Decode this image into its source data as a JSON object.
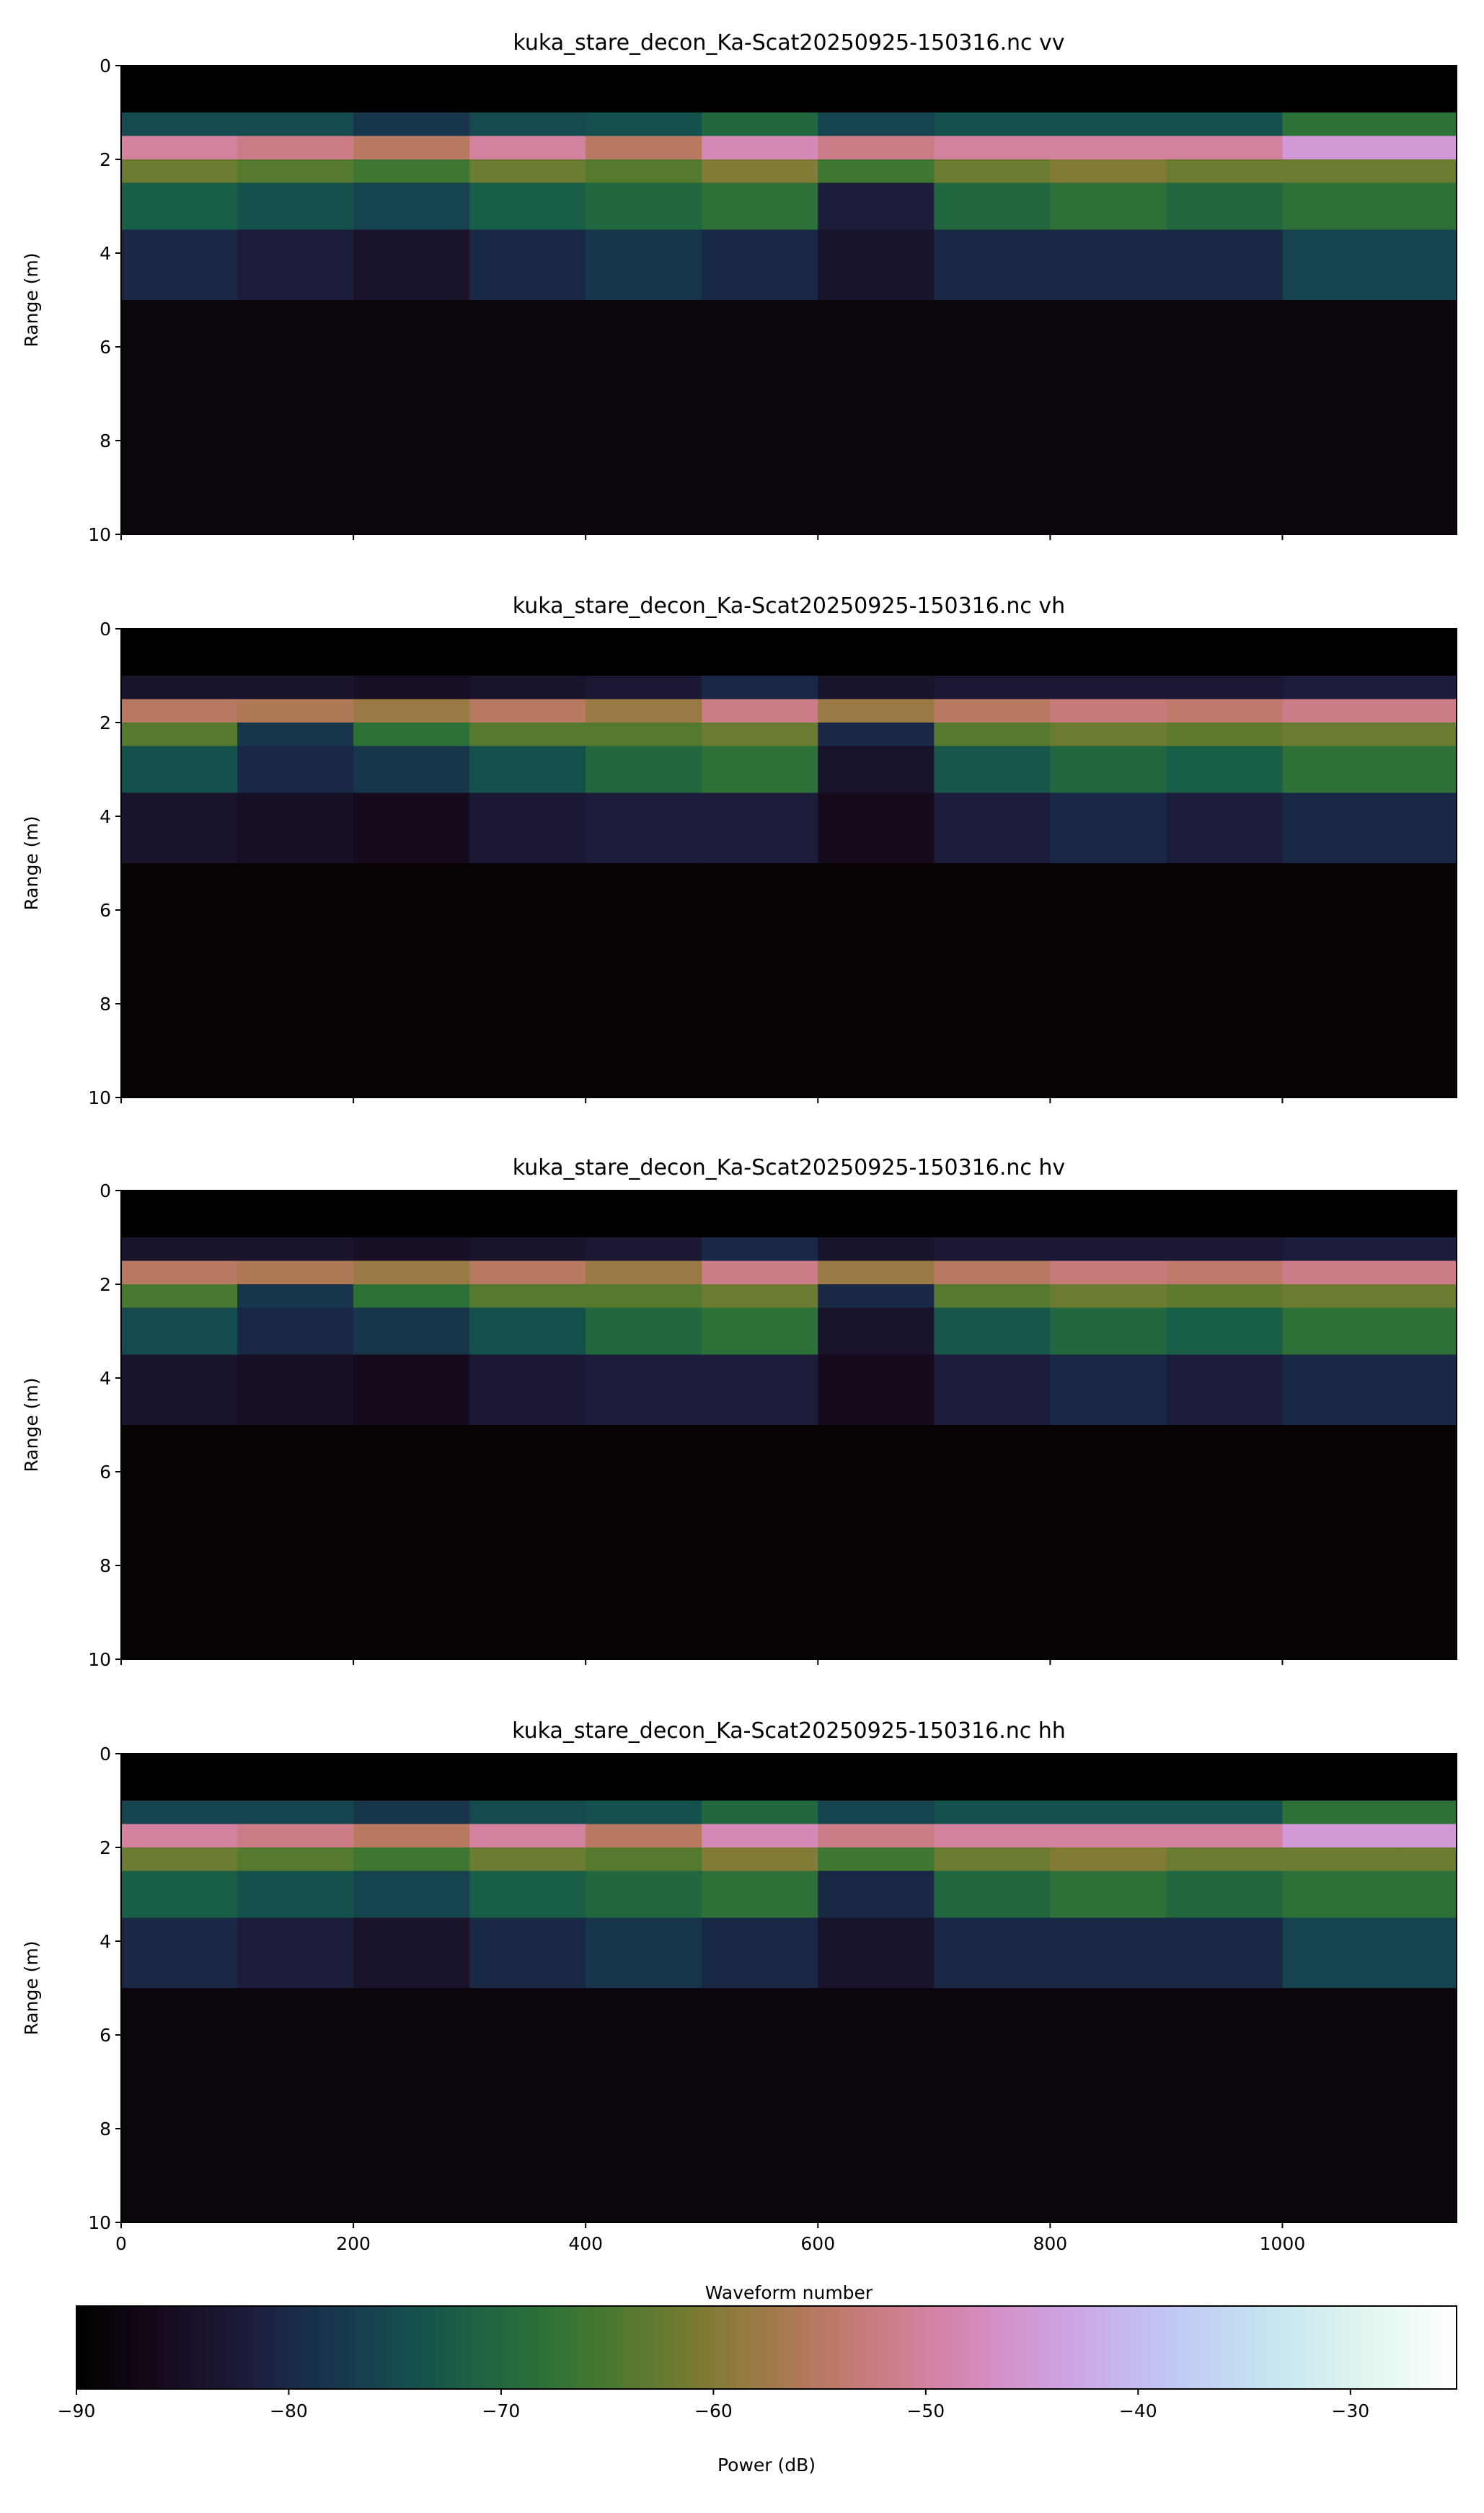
{
  "chart_data": [
    {
      "type": "heatmap",
      "title": "kuka_stare_decon_Ka-Scat20250925-150316.nc vv",
      "ylabel": "Range (m)",
      "colormap": "cubehelix",
      "xbins": [
        0,
        100,
        200,
        300,
        400,
        500,
        600,
        700,
        800,
        900,
        1000,
        1100,
        1150
      ],
      "ybins": [
        0,
        1,
        1.5,
        2,
        2.5,
        3.5,
        5,
        10
      ],
      "values": [
        [
          -90,
          -90,
          -90,
          -90,
          -90,
          -90,
          -90,
          -90,
          -90,
          -90,
          -90,
          -90
        ],
        [
          -75,
          -75,
          -78,
          -75,
          -74,
          -70,
          -76,
          -74,
          -74,
          -74,
          -68,
          -68
        ],
        [
          -50,
          -52,
          -55,
          -50,
          -55,
          -48,
          -52,
          -50,
          -50,
          -50,
          -45,
          -45
        ],
        [
          -62,
          -64,
          -66,
          -62,
          -64,
          -60,
          -66,
          -62,
          -60,
          -62,
          -62,
          -62
        ],
        [
          -72,
          -74,
          -76,
          -72,
          -70,
          -68,
          -82,
          -70,
          -68,
          -70,
          -68,
          -68
        ],
        [
          -80,
          -82,
          -84,
          -80,
          -78,
          -80,
          -84,
          -80,
          -80,
          -80,
          -76,
          -76
        ],
        [
          -88,
          -88,
          -88,
          -88,
          -88,
          -88,
          -88,
          -88,
          -88,
          -88,
          -88,
          -88
        ]
      ],
      "xlim": [
        0,
        1150
      ],
      "ylim": [
        10,
        0
      ],
      "xticks": [
        0,
        200,
        400,
        600,
        800,
        1000
      ],
      "yticks": [
        0,
        2,
        4,
        6,
        8,
        10
      ]
    },
    {
      "type": "heatmap",
      "title": "kuka_stare_decon_Ka-Scat20250925-150316.nc vh",
      "ylabel": "Range (m)",
      "colormap": "cubehelix",
      "xbins": [
        0,
        100,
        200,
        300,
        400,
        500,
        600,
        700,
        800,
        900,
        1000,
        1100,
        1150
      ],
      "ybins": [
        0,
        1,
        1.5,
        2,
        2.5,
        3.5,
        5,
        10
      ],
      "values": [
        [
          -90,
          -90,
          -90,
          -90,
          -90,
          -90,
          -90,
          -90,
          -90,
          -90,
          -90,
          -90
        ],
        [
          -84,
          -84,
          -85,
          -84,
          -83,
          -80,
          -84,
          -83,
          -83,
          -83,
          -82,
          -82
        ],
        [
          -55,
          -56,
          -58,
          -55,
          -58,
          -52,
          -58,
          -55,
          -53,
          -54,
          -52,
          -52
        ],
        [
          -64,
          -78,
          -68,
          -64,
          -64,
          -62,
          -80,
          -64,
          -62,
          -63,
          -62,
          -62
        ],
        [
          -74,
          -80,
          -78,
          -74,
          -70,
          -68,
          -84,
          -73,
          -70,
          -72,
          -68,
          -68
        ],
        [
          -84,
          -85,
          -86,
          -83,
          -82,
          -82,
          -86,
          -82,
          -80,
          -82,
          -80,
          -80
        ],
        [
          -89,
          -89,
          -89,
          -89,
          -89,
          -89,
          -89,
          -89,
          -89,
          -89,
          -89,
          -89
        ]
      ],
      "xlim": [
        0,
        1150
      ],
      "ylim": [
        10,
        0
      ],
      "xticks": [
        0,
        200,
        400,
        600,
        800,
        1000
      ],
      "yticks": [
        0,
        2,
        4,
        6,
        8,
        10
      ]
    },
    {
      "type": "heatmap",
      "title": "kuka_stare_decon_Ka-Scat20250925-150316.nc hv",
      "ylabel": "Range (m)",
      "colormap": "cubehelix",
      "xbins": [
        0,
        100,
        200,
        300,
        400,
        500,
        600,
        700,
        800,
        900,
        1000,
        1100,
        1150
      ],
      "ybins": [
        0,
        1,
        1.5,
        2,
        2.5,
        3.5,
        5,
        10
      ],
      "values": [
        [
          -90,
          -90,
          -90,
          -90,
          -90,
          -90,
          -90,
          -90,
          -90,
          -90,
          -90,
          -90
        ],
        [
          -84,
          -84,
          -85,
          -84,
          -83,
          -80,
          -84,
          -83,
          -83,
          -83,
          -82,
          -82
        ],
        [
          -55,
          -56,
          -58,
          -55,
          -58,
          -52,
          -58,
          -55,
          -53,
          -54,
          -52,
          -52
        ],
        [
          -65,
          -78,
          -68,
          -64,
          -64,
          -62,
          -80,
          -64,
          -62,
          -63,
          -62,
          -62
        ],
        [
          -75,
          -80,
          -78,
          -74,
          -70,
          -68,
          -84,
          -73,
          -70,
          -72,
          -68,
          -68
        ],
        [
          -84,
          -85,
          -86,
          -83,
          -82,
          -82,
          -86,
          -82,
          -80,
          -82,
          -80,
          -80
        ],
        [
          -89,
          -89,
          -89,
          -89,
          -89,
          -89,
          -89,
          -89,
          -89,
          -89,
          -89,
          -89
        ]
      ],
      "xlim": [
        0,
        1150
      ],
      "ylim": [
        10,
        0
      ],
      "xticks": [
        0,
        200,
        400,
        600,
        800,
        1000
      ],
      "yticks": [
        0,
        2,
        4,
        6,
        8,
        10
      ]
    },
    {
      "type": "heatmap",
      "title": "kuka_stare_decon_Ka-Scat20250925-150316.nc hh",
      "ylabel": "Range (m)",
      "xlabel": "Waveform number",
      "colormap": "cubehelix",
      "xbins": [
        0,
        100,
        200,
        300,
        400,
        500,
        600,
        700,
        800,
        900,
        1000,
        1100,
        1150
      ],
      "ybins": [
        0,
        1,
        1.5,
        2,
        2.5,
        3.5,
        5,
        10
      ],
      "values": [
        [
          -90,
          -90,
          -90,
          -90,
          -90,
          -90,
          -90,
          -90,
          -90,
          -90,
          -90,
          -90
        ],
        [
          -76,
          -76,
          -78,
          -75,
          -74,
          -70,
          -76,
          -74,
          -74,
          -74,
          -68,
          -68
        ],
        [
          -50,
          -52,
          -55,
          -50,
          -55,
          -48,
          -52,
          -50,
          -50,
          -50,
          -45,
          -45
        ],
        [
          -62,
          -64,
          -66,
          -62,
          -64,
          -60,
          -66,
          -62,
          -60,
          -62,
          -62,
          -62
        ],
        [
          -72,
          -74,
          -76,
          -72,
          -70,
          -68,
          -80,
          -70,
          -68,
          -70,
          -68,
          -68
        ],
        [
          -80,
          -82,
          -84,
          -80,
          -78,
          -80,
          -84,
          -80,
          -80,
          -80,
          -76,
          -76
        ],
        [
          -88,
          -88,
          -88,
          -88,
          -88,
          -88,
          -88,
          -88,
          -88,
          -88,
          -88,
          -88
        ]
      ],
      "xlim": [
        0,
        1150
      ],
      "ylim": [
        10,
        0
      ],
      "xticks": [
        0,
        200,
        400,
        600,
        800,
        1000
      ],
      "yticks": [
        0,
        2,
        4,
        6,
        8,
        10
      ]
    }
  ],
  "colorbar": {
    "label": "Power (dB)",
    "colormap": "cubehelix",
    "lim": [
      -90,
      -25
    ],
    "ticks": [
      {
        "value": -90,
        "label": "−90"
      },
      {
        "value": -80,
        "label": "−80"
      },
      {
        "value": -70,
        "label": "−70"
      },
      {
        "value": -60,
        "label": "−60"
      },
      {
        "value": -50,
        "label": "−50"
      },
      {
        "value": -40,
        "label": "−40"
      },
      {
        "value": -30,
        "label": "−30"
      }
    ]
  }
}
